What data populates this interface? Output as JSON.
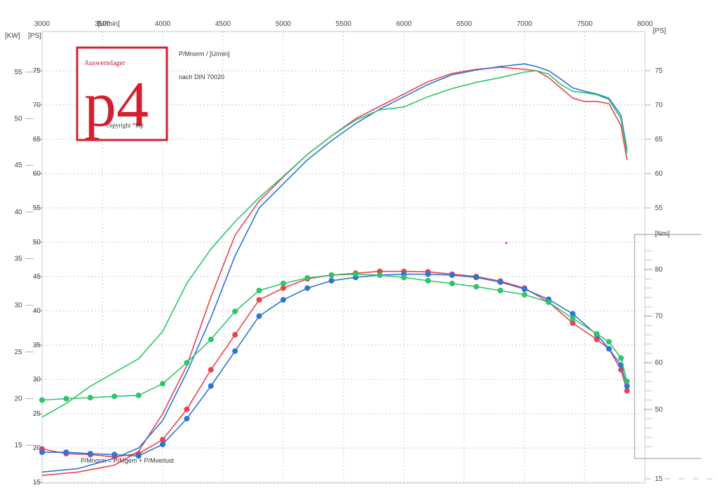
{
  "chart_data": {
    "type": "line",
    "title": "P/Mnorm / [U/min]",
    "subtitle": "nach DIN 70020",
    "formula": "P/Mnorm = P/Mgem + P/Mverlust",
    "x_unit": "[U/min]",
    "x_ticks": [
      3000,
      3500,
      4000,
      4500,
      5000,
      5500,
      6000,
      6500,
      7000,
      7500,
      8000
    ],
    "xlim": [
      3000,
      8000
    ],
    "kw_unit": "[KW]",
    "ps_left_unit": "[PS]",
    "ps_right_unit": "[PS]",
    "nm_unit": "[Nm]",
    "kw_ticks": [
      15,
      20,
      25,
      30,
      35,
      40,
      45,
      50,
      55
    ],
    "ps_ticks": [
      15,
      20,
      25,
      30,
      35,
      40,
      45,
      50,
      55,
      60,
      65,
      70,
      75
    ],
    "ps_right_ticks": [
      15,
      55,
      60,
      65,
      70,
      75
    ],
    "nm_ticks": [
      50,
      60,
      70,
      80
    ],
    "ps_range": [
      15,
      78
    ],
    "nm_range": [
      39,
      86
    ],
    "colors": {
      "red": "#e8424f",
      "blue": "#2e73d6",
      "green": "#2ec46a",
      "grid": "#b8b8b8",
      "frame": "#c8c8c8",
      "logo": "#d2202f"
    },
    "logo": {
      "header": "Auswertelager",
      "mark": "p4",
      "copyright": "copyright *blp"
    },
    "series": [
      {
        "name": "red",
        "kind": "power",
        "x": [
          3000,
          3300,
          3600,
          3800,
          4000,
          4200,
          4400,
          4600,
          4800,
          5000,
          5200,
          5400,
          5600,
          5800,
          6000,
          6200,
          6400,
          6600,
          6800,
          7000,
          7100,
          7200,
          7300,
          7400,
          7500,
          7600,
          7700,
          7800,
          7850
        ],
        "values": [
          16,
          16.5,
          17.5,
          19.5,
          25,
          32,
          42,
          51,
          56,
          59.5,
          62.8,
          65.5,
          68,
          69.8,
          71.6,
          73.4,
          74.6,
          75.2,
          75.5,
          75.2,
          75,
          74,
          72.5,
          71,
          70.5,
          70.5,
          70.2,
          67,
          62
        ]
      },
      {
        "name": "blue",
        "kind": "power",
        "x": [
          3000,
          3300,
          3600,
          3800,
          4000,
          4200,
          4400,
          4600,
          4800,
          5000,
          5200,
          5400,
          5600,
          5800,
          6000,
          6200,
          6400,
          6600,
          6800,
          7000,
          7100,
          7200,
          7300,
          7400,
          7500,
          7600,
          7700,
          7800,
          7850
        ],
        "values": [
          16.5,
          17,
          18.5,
          20,
          24,
          31,
          39,
          48,
          55,
          58.5,
          62,
          64.8,
          67.3,
          69.4,
          71.2,
          73,
          74.4,
          75.1,
          75.6,
          76,
          75.6,
          75,
          73.8,
          72.5,
          72,
          71.6,
          71,
          68.5,
          63.5
        ]
      },
      {
        "name": "green",
        "kind": "power",
        "x": [
          3000,
          3200,
          3400,
          3600,
          3800,
          4000,
          4200,
          4400,
          4600,
          4800,
          5000,
          5200,
          5400,
          5600,
          5800,
          6000,
          6200,
          6400,
          6600,
          6800,
          7000,
          7100,
          7200,
          7300,
          7400,
          7500,
          7600,
          7700,
          7800,
          7850
        ],
        "values": [
          24.5,
          26.5,
          29,
          31,
          33,
          37,
          44,
          49,
          53,
          56.5,
          59.6,
          62.8,
          65.5,
          67.8,
          69.3,
          69.7,
          71.2,
          72.4,
          73.3,
          74,
          74.8,
          75,
          74.5,
          73,
          72,
          71.8,
          71.5,
          70.8,
          68,
          63
        ]
      },
      {
        "name": "red",
        "kind": "torque",
        "x": [
          3000,
          3200,
          3400,
          3600,
          3800,
          4000,
          4200,
          4400,
          4600,
          4800,
          5000,
          5200,
          5400,
          5600,
          5800,
          6000,
          6200,
          6400,
          6600,
          6800,
          7000,
          7200,
          7400,
          7600,
          7700,
          7800,
          7850
        ],
        "values": [
          41.5,
          40.5,
          40.3,
          39.8,
          40.5,
          43.5,
          50,
          58.5,
          66,
          73.5,
          76,
          78,
          78.8,
          79.2,
          79.6,
          79.6,
          79.5,
          79,
          78.5,
          77.5,
          76,
          73,
          68.5,
          65,
          63,
          58.5,
          54
        ]
      },
      {
        "name": "blue",
        "kind": "torque",
        "x": [
          3000,
          3200,
          3400,
          3600,
          3800,
          4000,
          4200,
          4400,
          4600,
          4800,
          5000,
          5200,
          5400,
          5600,
          5800,
          6000,
          6200,
          6400,
          6600,
          6800,
          7000,
          7200,
          7400,
          7600,
          7700,
          7800,
          7850
        ],
        "values": [
          40.8,
          40.8,
          40.5,
          40.3,
          40,
          42.5,
          48,
          55,
          62.5,
          70,
          73.5,
          76,
          77.6,
          78.3,
          78.8,
          79,
          79,
          78.8,
          78.3,
          77.3,
          75.8,
          73.6,
          70.5,
          66,
          63,
          59.5,
          55
        ]
      },
      {
        "name": "green",
        "kind": "torque",
        "x": [
          3000,
          3200,
          3400,
          3600,
          3800,
          4000,
          4200,
          4400,
          4600,
          4800,
          5000,
          5200,
          5400,
          5600,
          5800,
          6000,
          6200,
          6400,
          6600,
          6800,
          7000,
          7200,
          7400,
          7600,
          7700,
          7800,
          7850
        ],
        "values": [
          52,
          52.3,
          52.5,
          52.8,
          53,
          55.5,
          60,
          65,
          71,
          75.5,
          77,
          78.2,
          78.8,
          79,
          78.8,
          78.3,
          77.6,
          77,
          76.3,
          75.5,
          74.6,
          73,
          69.5,
          66.2,
          64.5,
          61,
          56
        ]
      }
    ]
  }
}
